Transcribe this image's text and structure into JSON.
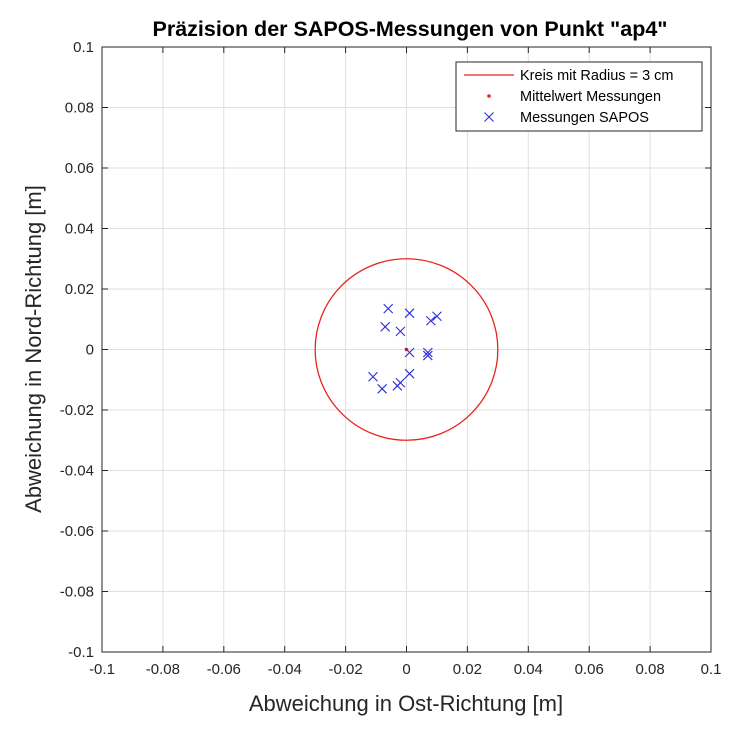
{
  "chart_data": {
    "type": "scatter",
    "title": "Präzision der SAPOS-Messungen von Punkt \"ap4\"",
    "xlabel": "Abweichung in Ost-Richtung [m]",
    "ylabel": "Abweichung in Nord-Richtung [m]",
    "xlim": [
      -0.1,
      0.1
    ],
    "ylim": [
      -0.1,
      0.1
    ],
    "grid": true,
    "legend_position": "top-right",
    "x_ticks": [
      -0.1,
      -0.08,
      -0.06,
      -0.04,
      -0.02,
      0,
      0.02,
      0.04,
      0.06,
      0.08,
      0.1
    ],
    "y_ticks": [
      -0.1,
      -0.08,
      -0.06,
      -0.04,
      -0.02,
      0,
      0.02,
      0.04,
      0.06,
      0.08,
      0.1
    ],
    "x_tick_labels": [
      "-0.1",
      "-0.08",
      "-0.06",
      "-0.04",
      "-0.02",
      "0",
      "0.02",
      "0.04",
      "0.06",
      "0.08",
      "0.1"
    ],
    "y_tick_labels": [
      "-0.1",
      "-0.08",
      "-0.06",
      "-0.04",
      "-0.02",
      "0",
      "0.02",
      "0.04",
      "0.06",
      "0.08",
      "0.1"
    ],
    "series": [
      {
        "name": "Kreis mit Radius = 3 cm",
        "kind": "circle",
        "center": [
          0,
          0
        ],
        "radius": 0.03,
        "color": "#e8251d"
      },
      {
        "name": "Mittelwert Messungen",
        "kind": "point",
        "x": [
          0
        ],
        "y": [
          0
        ],
        "color": "#e8251d"
      },
      {
        "name": "Messungen SAPOS",
        "kind": "cross",
        "color": "#2a2fd6",
        "points": [
          [
            -0.006,
            0.0135
          ],
          [
            0.001,
            0.012
          ],
          [
            0.01,
            0.011
          ],
          [
            0.008,
            0.0095
          ],
          [
            -0.007,
            0.0075
          ],
          [
            -0.002,
            0.006
          ],
          [
            0.001,
            -0.001
          ],
          [
            0.007,
            -0.001
          ],
          [
            0.007,
            -0.002
          ],
          [
            0.001,
            -0.008
          ],
          [
            -0.011,
            -0.009
          ],
          [
            -0.002,
            -0.011
          ],
          [
            -0.003,
            -0.012
          ],
          [
            -0.008,
            -0.013
          ]
        ]
      }
    ]
  }
}
